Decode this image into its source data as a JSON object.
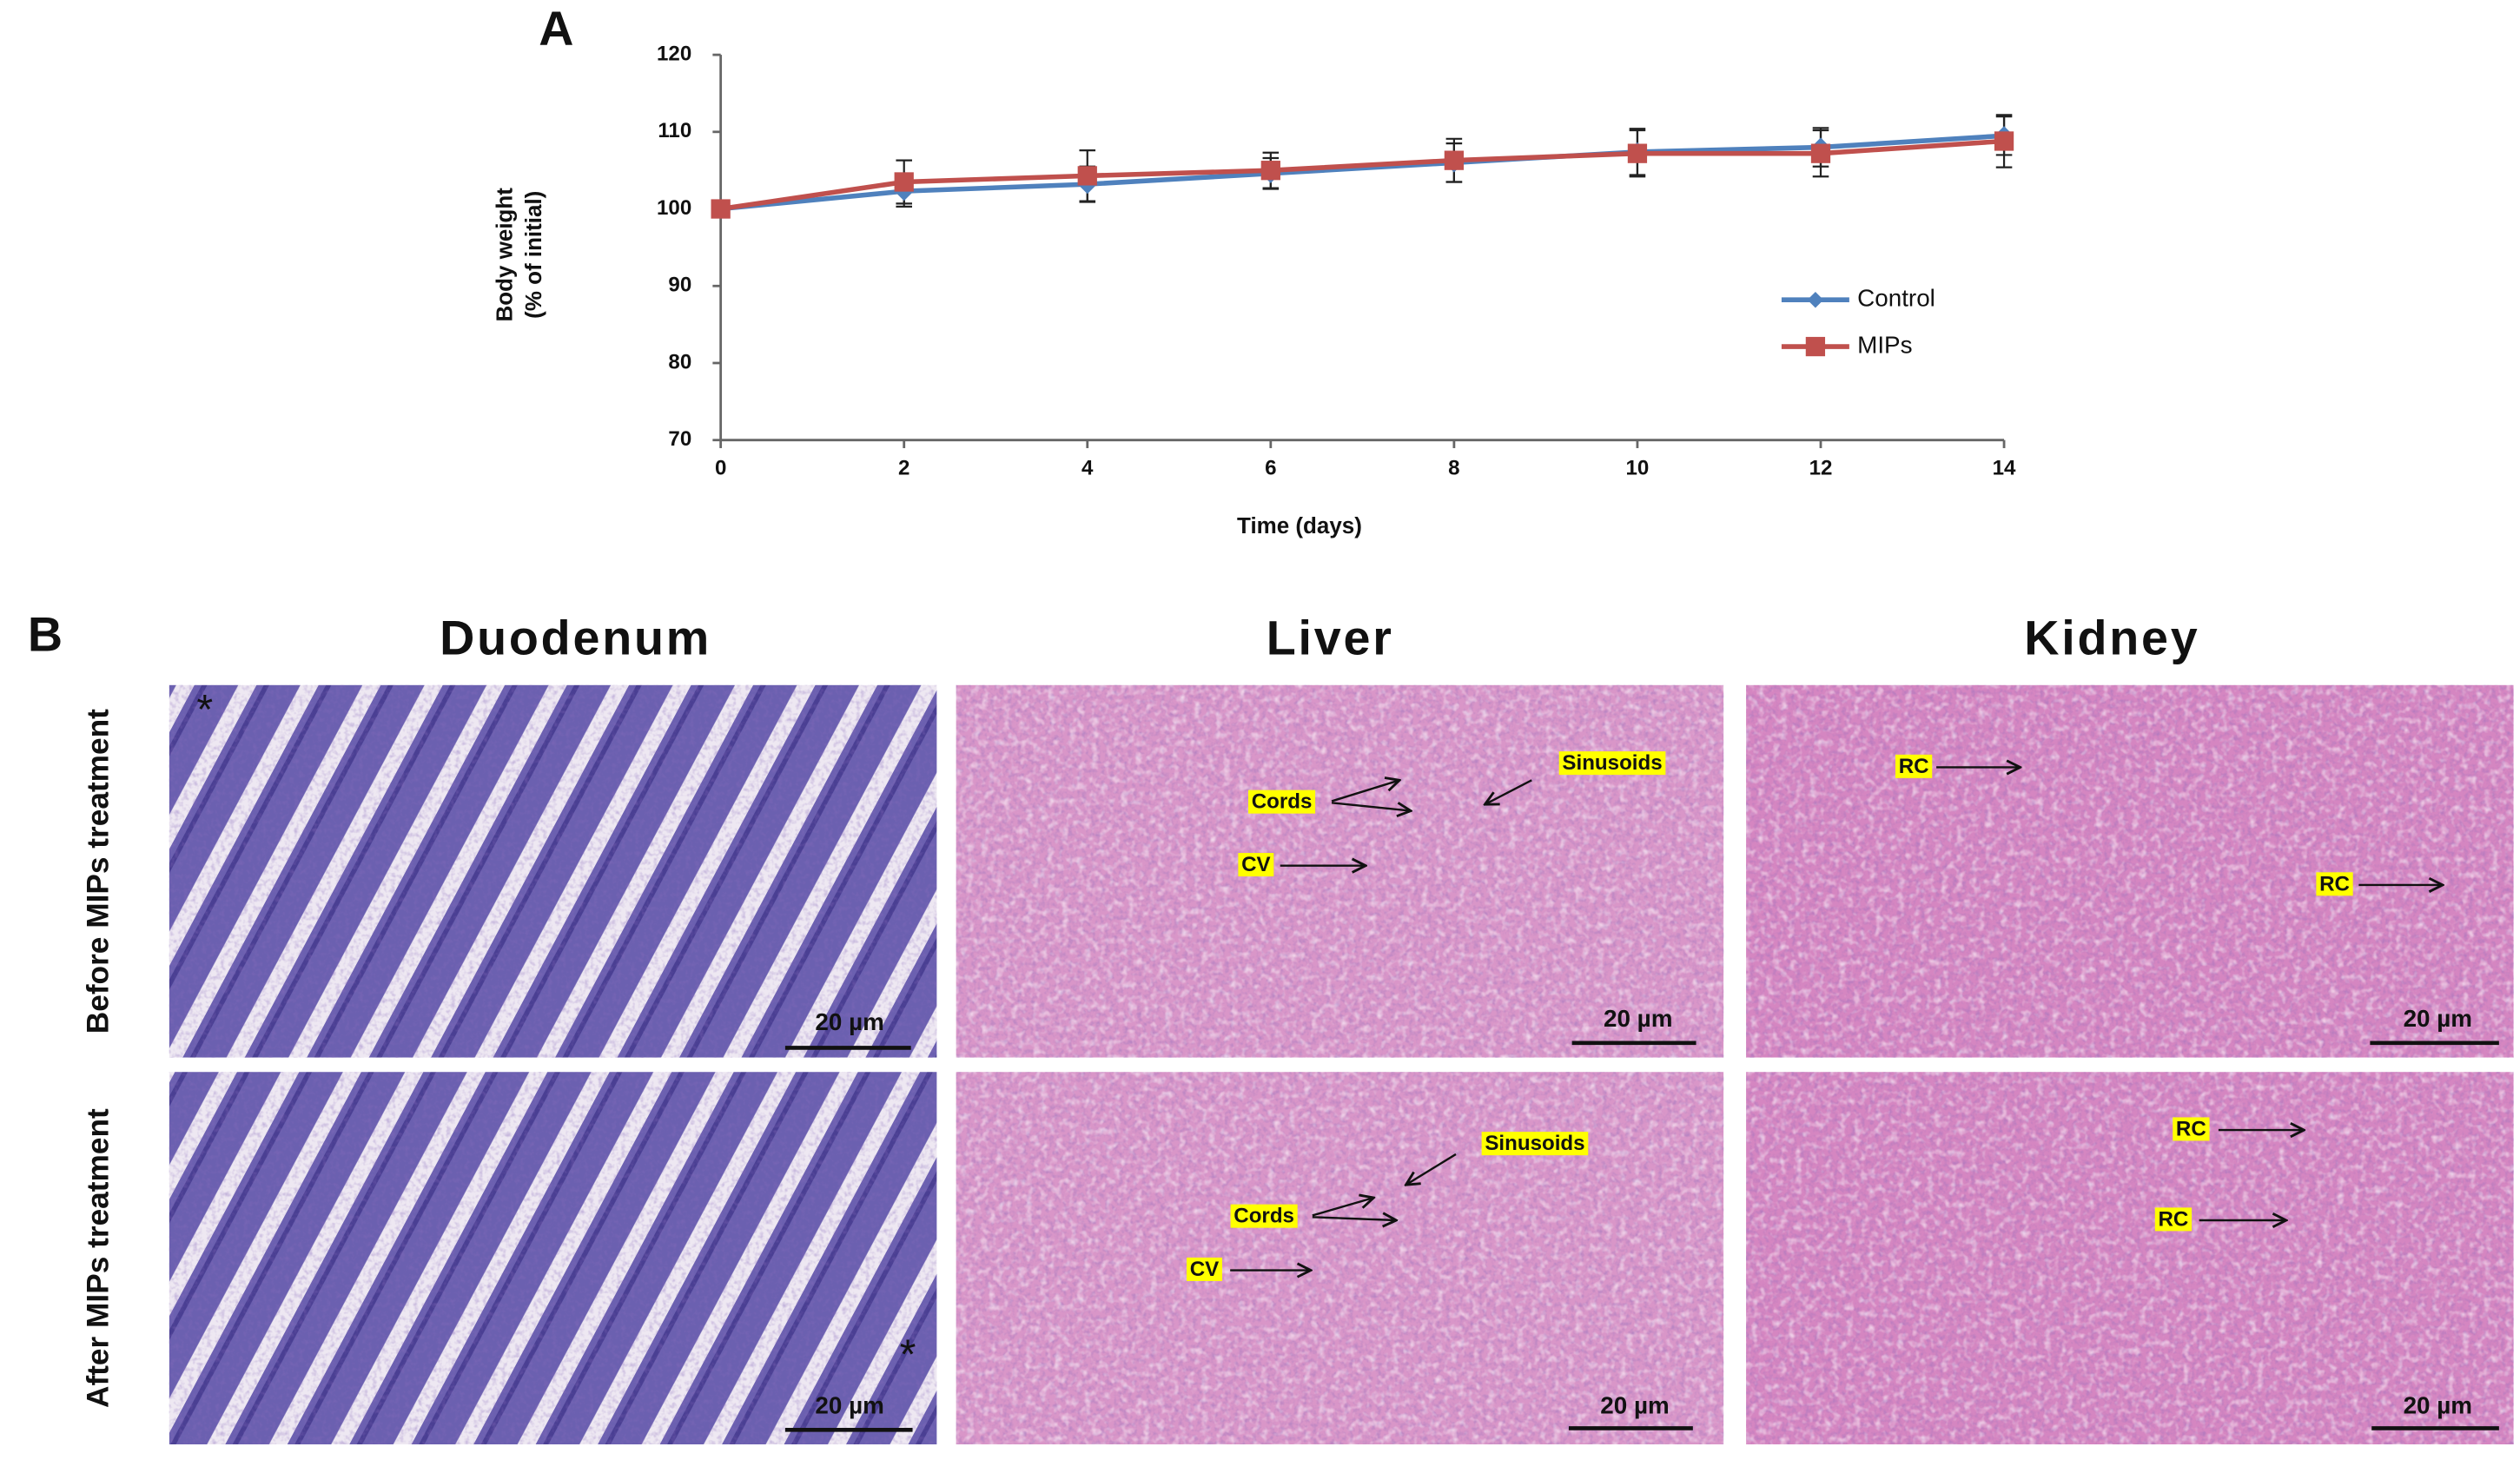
{
  "chart_data": {
    "type": "line",
    "panel_label": "A",
    "xlabel": "Time (days)",
    "ylabel": [
      "Body weight",
      "(% of initial)"
    ],
    "x": [
      0,
      2,
      4,
      6,
      8,
      10,
      12,
      14
    ],
    "xlim": [
      0,
      14
    ],
    "xticks": [
      0,
      2,
      4,
      6,
      8,
      10,
      12,
      14
    ],
    "ylim": [
      70,
      120
    ],
    "yticks": [
      70,
      80,
      90,
      100,
      110,
      120
    ],
    "legend": "right",
    "series": [
      {
        "name": "Control",
        "color": "#4f81bd",
        "marker": "diamond",
        "values": [
          100,
          102.3,
          103.2,
          104.6,
          106,
          107.4,
          108,
          109.5
        ],
        "errors": [
          0,
          2,
          2.3,
          2,
          2.5,
          3,
          2.5,
          2.5
        ]
      },
      {
        "name": "MIPs",
        "color": "#c0504d",
        "marker": "square",
        "values": [
          100,
          103.5,
          104.3,
          105,
          106.3,
          107.2,
          107.2,
          108.8
        ],
        "errors": [
          0,
          2.8,
          3.3,
          2.3,
          2.8,
          3,
          3,
          3.4
        ]
      }
    ]
  },
  "histology": {
    "panel_label": "B",
    "columns": [
      "Duodenum",
      "Liver",
      "Kidney"
    ],
    "rows": [
      "Before MIPs treatment",
      "After MIPs treatment"
    ],
    "panels": [
      {
        "scale_bar": "20 µm",
        "annotations": [
          "*"
        ]
      },
      {
        "scale_bar": "20 µm",
        "annotations": [
          "Sinusoids",
          "Cords",
          "CV"
        ]
      },
      {
        "scale_bar": "20 µm",
        "annotations": [
          "RC",
          "RC"
        ]
      },
      {
        "scale_bar": "20 µm",
        "annotations": [
          "*"
        ]
      },
      {
        "scale_bar": "20 µm",
        "annotations": [
          "Sinusoids",
          "Cords",
          "CV"
        ]
      },
      {
        "scale_bar": "20 µm",
        "annotations": [
          "RC",
          "RC"
        ]
      }
    ]
  }
}
